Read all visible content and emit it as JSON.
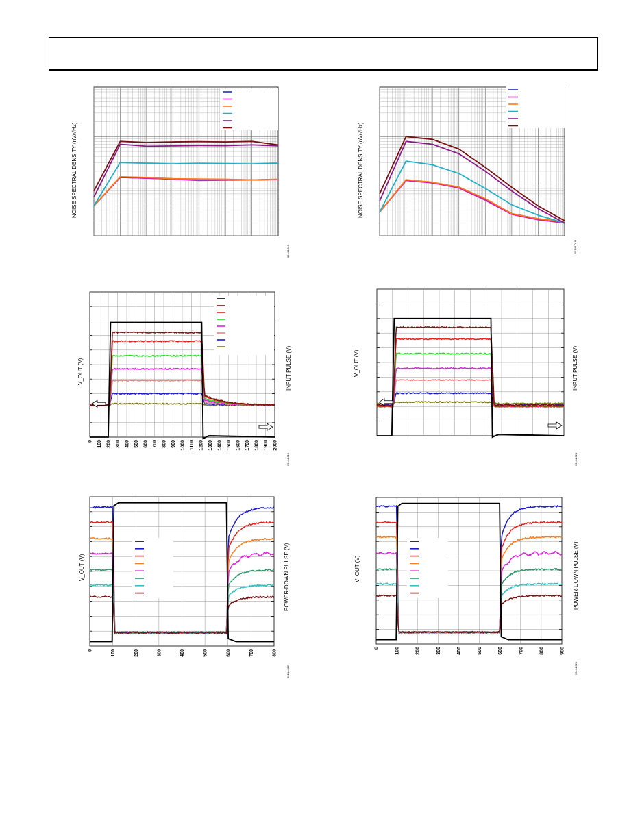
{
  "header": {
    "text": ""
  },
  "chart_data": [
    {
      "id": "noise-a",
      "type": "line",
      "title": "",
      "ylabel": "NOISE SPECTRAL DENSITY (nV/√Hz)",
      "x_scale": "log",
      "y_scale": "log",
      "xlim": [
        1,
        10000000
      ],
      "ylim": [
        10,
        10000
      ],
      "grid": true,
      "legend_position": "top-right",
      "figure_id": "05144-015",
      "series": [
        {
          "color": "#1f2fb4",
          "x": [
            1,
            10,
            100,
            1000,
            10000,
            100000,
            1000000,
            10000000
          ],
          "y": [
            40,
            150,
            145,
            140,
            138,
            136,
            134,
            136
          ]
        },
        {
          "color": "#d020b0",
          "x": [
            1,
            10,
            100,
            1000,
            10000,
            100000,
            1000000,
            10000000
          ],
          "y": [
            40,
            150,
            145,
            138,
            130,
            132,
            134,
            136
          ]
        },
        {
          "color": "#ff7a1a",
          "x": [
            1,
            10,
            100,
            1000,
            10000,
            100000,
            1000000,
            10000000
          ],
          "y": [
            40,
            155,
            150,
            142,
            140,
            138,
            134,
            138
          ]
        },
        {
          "color": "#22b0c8",
          "x": [
            1,
            10,
            100,
            1000,
            10000,
            100000,
            1000000,
            10000000
          ],
          "y": [
            40,
            300,
            290,
            282,
            288,
            285,
            282,
            290
          ]
        },
        {
          "color": "#8a1a8a",
          "x": [
            1,
            10,
            100,
            1000,
            10000,
            100000,
            1000000,
            10000000
          ],
          "y": [
            60,
            700,
            640,
            650,
            660,
            655,
            680,
            650
          ]
        },
        {
          "color": "#7a1010",
          "x": [
            1,
            10,
            100,
            1000,
            10000,
            100000,
            1000000,
            10000000
          ],
          "y": [
            80,
            800,
            760,
            780,
            790,
            780,
            800,
            680
          ]
        }
      ]
    },
    {
      "id": "noise-b",
      "type": "line",
      "title": "",
      "ylabel": "NOISE SPECTRAL DENSITY (nV/√Hz)",
      "x_scale": "log",
      "y_scale": "log",
      "xlim": [
        1,
        10000000
      ],
      "ylim": [
        10,
        10000
      ],
      "grid": true,
      "legend_position": "top-right",
      "figure_id": "05144-018",
      "series": [
        {
          "color": "#1f2fb4",
          "x": [
            1,
            10,
            100,
            1000,
            10000,
            100000,
            1000000,
            10000000
          ],
          "y": [
            30,
            130,
            118,
            95,
            55,
            28,
            22,
            18
          ]
        },
        {
          "color": "#d020b0",
          "x": [
            1,
            10,
            100,
            1000,
            10000,
            100000,
            1000000,
            10000000
          ],
          "y": [
            30,
            130,
            116,
            92,
            52,
            27,
            21,
            18
          ]
        },
        {
          "color": "#ff7a1a",
          "x": [
            1,
            10,
            100,
            1000,
            10000,
            100000,
            1000000,
            10000000
          ],
          "y": [
            30,
            135,
            120,
            96,
            56,
            28,
            22,
            19
          ]
        },
        {
          "color": "#22b0c8",
          "x": [
            1,
            10,
            100,
            1000,
            10000,
            100000,
            1000000,
            10000000
          ],
          "y": [
            30,
            320,
            270,
            180,
            90,
            42,
            26,
            18
          ]
        },
        {
          "color": "#8a1a8a",
          "x": [
            1,
            10,
            100,
            1000,
            10000,
            100000,
            1000000,
            10000000
          ],
          "y": [
            50,
            800,
            700,
            450,
            200,
            80,
            35,
            18
          ]
        },
        {
          "color": "#7a1010",
          "x": [
            1,
            10,
            100,
            1000,
            10000,
            100000,
            1000000,
            10000000
          ],
          "y": [
            70,
            1000,
            880,
            560,
            240,
            95,
            40,
            20
          ]
        }
      ]
    },
    {
      "id": "pulse-a",
      "type": "line",
      "ylabel_left": "V_OUT (V)",
      "ylabel_right": "INPUT PULSE (V)",
      "xlim": [
        0,
        2000
      ],
      "xticks": [
        "0",
        "100",
        "200",
        "300",
        "400",
        "500",
        "600",
        "700",
        "800",
        "900",
        "1000",
        "1100",
        "1200",
        "1300",
        "1400",
        "1500",
        "1600",
        "1700",
        "1800",
        "1900",
        "2000"
      ],
      "ylim": [
        0,
        10
      ],
      "grid": true,
      "legend_position": "top-right",
      "figure_id": "05144-019",
      "input_pulse": {
        "color": "#000000",
        "low": 0.0,
        "high": 8.0,
        "rise": 200,
        "fall": 1210
      },
      "series": [
        {
          "color": "#000000",
          "level": 7.9,
          "base": 2.2
        },
        {
          "color": "#7a1010",
          "level": 7.2,
          "base": 2.2
        },
        {
          "color": "#e8201a",
          "level": 6.6,
          "base": 2.2
        },
        {
          "color": "#22dd22",
          "level": 5.6,
          "base": 2.2
        },
        {
          "color": "#e020e0",
          "level": 4.7,
          "base": 2.2
        },
        {
          "color": "#f08080",
          "level": 3.9,
          "base": 2.2
        },
        {
          "color": "#1a1ad0",
          "level": 3.0,
          "base": 2.2
        },
        {
          "color": "#7a7a10",
          "level": 2.3,
          "base": 2.2
        }
      ]
    },
    {
      "id": "pulse-b",
      "type": "line",
      "ylabel_left": "V_OUT (V)",
      "ylabel_right": "INPUT PULSE (V)",
      "xlim": [
        0,
        2000
      ],
      "ylim": [
        0,
        10
      ],
      "grid": true,
      "figure_id": "05144-020",
      "input_pulse": {
        "color": "#000000",
        "low": 0.0,
        "high": 8.0,
        "rise": 160,
        "fall": 1220
      },
      "series": [
        {
          "color": "#000000",
          "level": 8.0,
          "base": 2.1
        },
        {
          "color": "#7a1010",
          "level": 7.4,
          "base": 2.1
        },
        {
          "color": "#e8201a",
          "level": 6.6,
          "base": 2.0
        },
        {
          "color": "#22dd22",
          "level": 5.6,
          "base": 2.0
        },
        {
          "color": "#e020e0",
          "level": 4.6,
          "base": 2.0
        },
        {
          "color": "#f08080",
          "level": 3.8,
          "base": 2.0
        },
        {
          "color": "#1a1ad0",
          "level": 2.9,
          "base": 2.1
        },
        {
          "color": "#7a7a10",
          "level": 2.3,
          "base": 2.2
        }
      ]
    },
    {
      "id": "pd-a",
      "type": "line",
      "ylabel_left": "V_OUT (V)",
      "ylabel_right": "POWER-DOWN PULSE (V)",
      "xlim": [
        0,
        800
      ],
      "xticks": [
        "0",
        "100",
        "200",
        "300",
        "400",
        "500",
        "600",
        "700",
        "800"
      ],
      "ylim": [
        0,
        10
      ],
      "grid": true,
      "legend_position": "center-left",
      "figure_id": "05144-022",
      "pd_pulse": {
        "color": "#000000",
        "low": 0.3,
        "high": 9.6,
        "rise": 100,
        "fall": 595
      },
      "series": [
        {
          "color": "#1a1ad0",
          "level": 9.3
        },
        {
          "color": "#e8201a",
          "level": 8.3
        },
        {
          "color": "#ff7a1a",
          "level": 7.2
        },
        {
          "color": "#e020e0",
          "level": 6.2
        },
        {
          "color": "#2a9a6a",
          "level": 5.1
        },
        {
          "color": "#33c0c0",
          "level": 4.1
        },
        {
          "color": "#7a1010",
          "level": 3.3
        }
      ],
      "off_level": 0.9
    },
    {
      "id": "pd-b",
      "type": "line",
      "ylabel_left": "V_OUT (V)",
      "ylabel_right": "POWER-DOWN PULSE (V)",
      "xlim": [
        0,
        900
      ],
      "xticks": [
        "0",
        "100",
        "200",
        "300",
        "400",
        "500",
        "600",
        "700",
        "800",
        "900"
      ],
      "ylim": [
        0,
        10
      ],
      "grid": true,
      "legend_position": "center-left",
      "figure_id": "05144-021",
      "pd_pulse": {
        "color": "#000000",
        "low": 0.3,
        "high": 9.6,
        "rise": 100,
        "fall": 600
      },
      "series": [
        {
          "color": "#1a1ad0",
          "level": 9.4
        },
        {
          "color": "#e8201a",
          "level": 8.3
        },
        {
          "color": "#ff7a1a",
          "level": 7.3
        },
        {
          "color": "#e020e0",
          "level": 6.2
        },
        {
          "color": "#2a9a6a",
          "level": 5.1
        },
        {
          "color": "#33c0c0",
          "level": 4.1
        },
        {
          "color": "#7a1010",
          "level": 3.3
        }
      ],
      "off_level": 0.8
    }
  ]
}
